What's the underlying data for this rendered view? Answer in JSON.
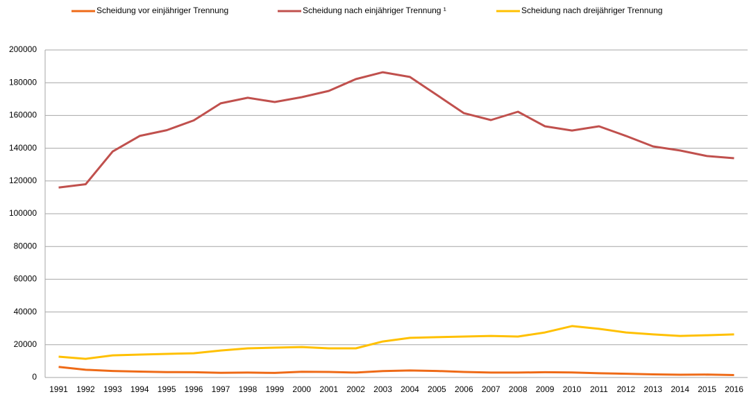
{
  "chart_data": {
    "type": "line",
    "categories": [
      "1991",
      "1992",
      "1993",
      "1994",
      "1995",
      "1996",
      "1997",
      "1998",
      "1999",
      "2000",
      "2001",
      "2002",
      "2003",
      "2004",
      "2005",
      "2006",
      "2007",
      "2008",
      "2009",
      "2010",
      "2011",
      "2012",
      "2013",
      "2014",
      "2015",
      "2016"
    ],
    "series": [
      {
        "name": "Scheidung vor einjähriger Trennung",
        "color": "#ee6a17",
        "values": [
          6500,
          4700,
          4000,
          3600,
          3300,
          3200,
          2900,
          3000,
          2800,
          3500,
          3400,
          3000,
          3900,
          4300,
          4000,
          3400,
          3000,
          3000,
          3200,
          3100,
          2600,
          2300,
          1900,
          1700,
          1800,
          1500
        ]
      },
      {
        "name": "Scheidung nach einjähriger Trennung ¹",
        "color": "#c0504d",
        "values": [
          116000,
          118000,
          138000,
          147500,
          151000,
          157000,
          167400,
          170800,
          168200,
          171200,
          175000,
          182200,
          186400,
          183500,
          172500,
          161400,
          157200,
          162300,
          153400,
          150800,
          153400,
          147500,
          141100,
          138600,
          135200,
          133900
        ]
      },
      {
        "name": "Scheidung nach dreijähriger Trennung",
        "color": "#ffc000",
        "values": [
          12700,
          11400,
          13500,
          14000,
          14400,
          14800,
          16500,
          17800,
          18200,
          18600,
          17800,
          17800,
          22000,
          24200,
          24600,
          25000,
          25400,
          25000,
          27500,
          31400,
          29700,
          27500,
          26300,
          25400,
          25800,
          26300
        ]
      }
    ],
    "ylim": [
      0,
      200000
    ],
    "yticks": [
      0,
      20000,
      40000,
      60000,
      80000,
      100000,
      120000,
      140000,
      160000,
      180000,
      200000
    ],
    "grid": true,
    "legend": "top"
  }
}
